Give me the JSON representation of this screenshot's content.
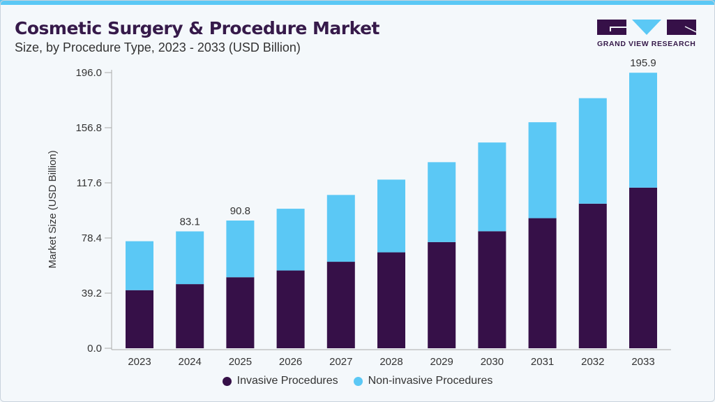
{
  "header": {
    "title": "Cosmetic Surgery & Procedure Market",
    "subtitle": "Size, by Procedure Type, 2023 - 2033 (USD Billion)",
    "logo_text": "GRAND VIEW RESEARCH"
  },
  "colors": {
    "invasive": "#361048",
    "non_invasive": "#5bc8f5",
    "accent": "#5bc8f5"
  },
  "chart_data": {
    "type": "bar",
    "stacked": true,
    "title": "Cosmetic Surgery & Procedure Market",
    "ylabel": "Market Size (USD Billion)",
    "xlabel": "",
    "ylim": [
      0,
      196
    ],
    "yticks": [
      "0.0",
      "39.2",
      "78.4",
      "117.6",
      "156.8",
      "196.0"
    ],
    "categories": [
      "2023",
      "2024",
      "2025",
      "2026",
      "2027",
      "2028",
      "2029",
      "2030",
      "2031",
      "2032",
      "2033"
    ],
    "series": [
      {
        "name": "Invasive Procedures",
        "values": [
          41.3,
          45.6,
          50.5,
          55.3,
          61.5,
          68.2,
          75.5,
          83.2,
          92.5,
          102.8,
          114.2
        ]
      },
      {
        "name": "Non-invasive Procedures",
        "values": [
          34.8,
          37.5,
          40.3,
          43.9,
          47.5,
          51.7,
          56.8,
          63.1,
          68.2,
          75.0,
          81.7
        ]
      }
    ],
    "data_labels": [
      {
        "category": "2024",
        "text": "83.1"
      },
      {
        "category": "2025",
        "text": "90.8"
      },
      {
        "category": "2033",
        "text": "195.9"
      }
    ],
    "legend": "bottom-center",
    "grid": false
  }
}
